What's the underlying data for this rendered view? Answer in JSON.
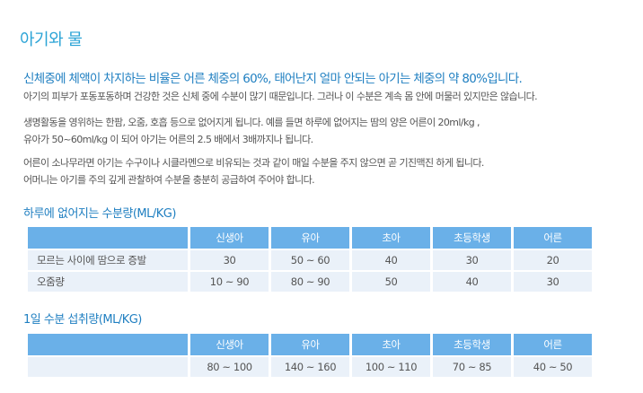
{
  "page_title": "아기와 물",
  "lead": "신체중에 체액이 차지하는 비율은 어른 체중의 60%, 태어난지 얼마 안되는 아기는 체중의 약 80%입니다.",
  "paragraphs": [
    [
      "아기의 피부가 포동포동하며 건강한 것은 신체 중에 수분이 많기 때문입니다. 그러나 이 수분은 계속 몸 안에 머물러 있지만은 않습니다."
    ],
    [
      "생명활동을 영위하는 한팜, 오줌, 호흡 등으로 없어지게 됩니다. 예를 들면 하루에 없어지는 땀의 양은 어른이 20ml/kg ,",
      "유아가 50~60ml/kg 이 되어 아기는 어른의 2.5 배에서 3배까지나 됩니다."
    ],
    [
      "어른이 소나무라면 아기는 수구이나 시클라멘으로 비유되는 것과 같이 매일 수분을 주지 않으면 곧 기진맥진 하게 됩니다.",
      "어머니는 아기를 주의 깊게 관찰하여 수분을 충분히 공급하여 주어야 합니다."
    ]
  ],
  "table1": {
    "heading": "하루에 없어지는 수분량(ML/KG)",
    "columns": [
      "",
      "신생아",
      "유아",
      "초아",
      "초등학생",
      "어른"
    ],
    "rows": [
      [
        "모르는 사이에 땀으로 증발",
        "30",
        "50 ~ 60",
        "40",
        "30",
        "20"
      ],
      [
        "오줌량",
        "10 ~ 90",
        "80 ~ 90",
        "50",
        "40",
        "30"
      ]
    ]
  },
  "table2": {
    "heading": "1일 수분 섭취량(ML/KG)",
    "columns": [
      "",
      "신생아",
      "유아",
      "초아",
      "초등학생",
      "어른"
    ],
    "rows": [
      [
        "",
        "80 ~ 100",
        "140 ~ 160",
        "100 ~ 110",
        "70 ~ 85",
        "40 ~ 50"
      ]
    ]
  }
}
